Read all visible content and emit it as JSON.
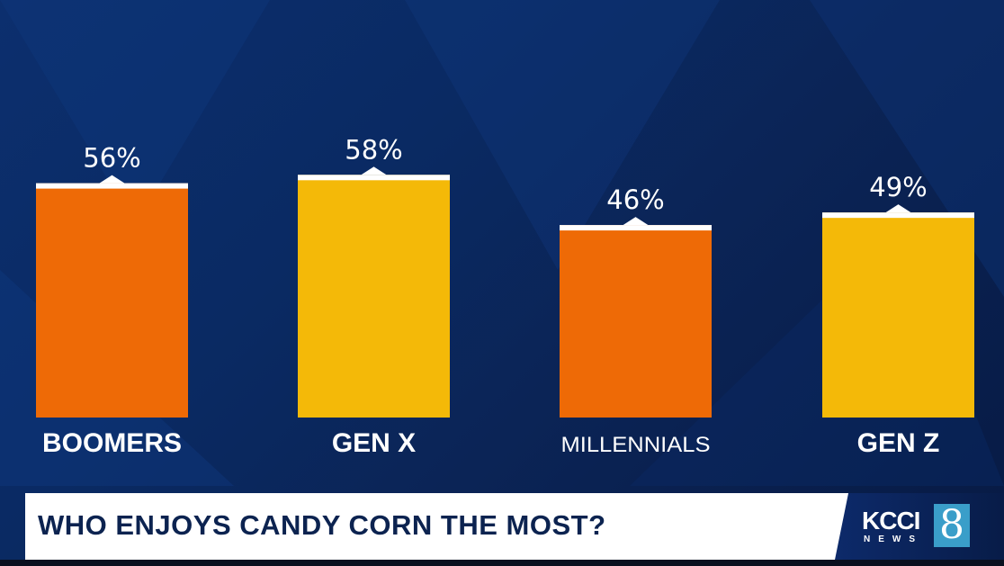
{
  "chart_data": {
    "type": "bar",
    "title": "WHO ENJOYS CANDY CORN THE MOST?",
    "categories": [
      "BOOMERS",
      "GEN X",
      "MILLENNIALS",
      "GEN Z"
    ],
    "values": [
      56,
      58,
      46,
      49
    ],
    "value_labels": [
      "56%",
      "58%",
      "46%",
      "49%"
    ],
    "colors": [
      "#ee6a06",
      "#f4b908",
      "#ee6a06",
      "#f4b908"
    ],
    "ylim": [
      0,
      100
    ],
    "xlabel": "",
    "ylabel": "",
    "grid": false
  },
  "banner": {
    "title": "WHO ENJOYS CANDY CORN THE MOST?"
  },
  "logo": {
    "name": "KCCI",
    "sub": "NEWS",
    "channel": "8"
  }
}
